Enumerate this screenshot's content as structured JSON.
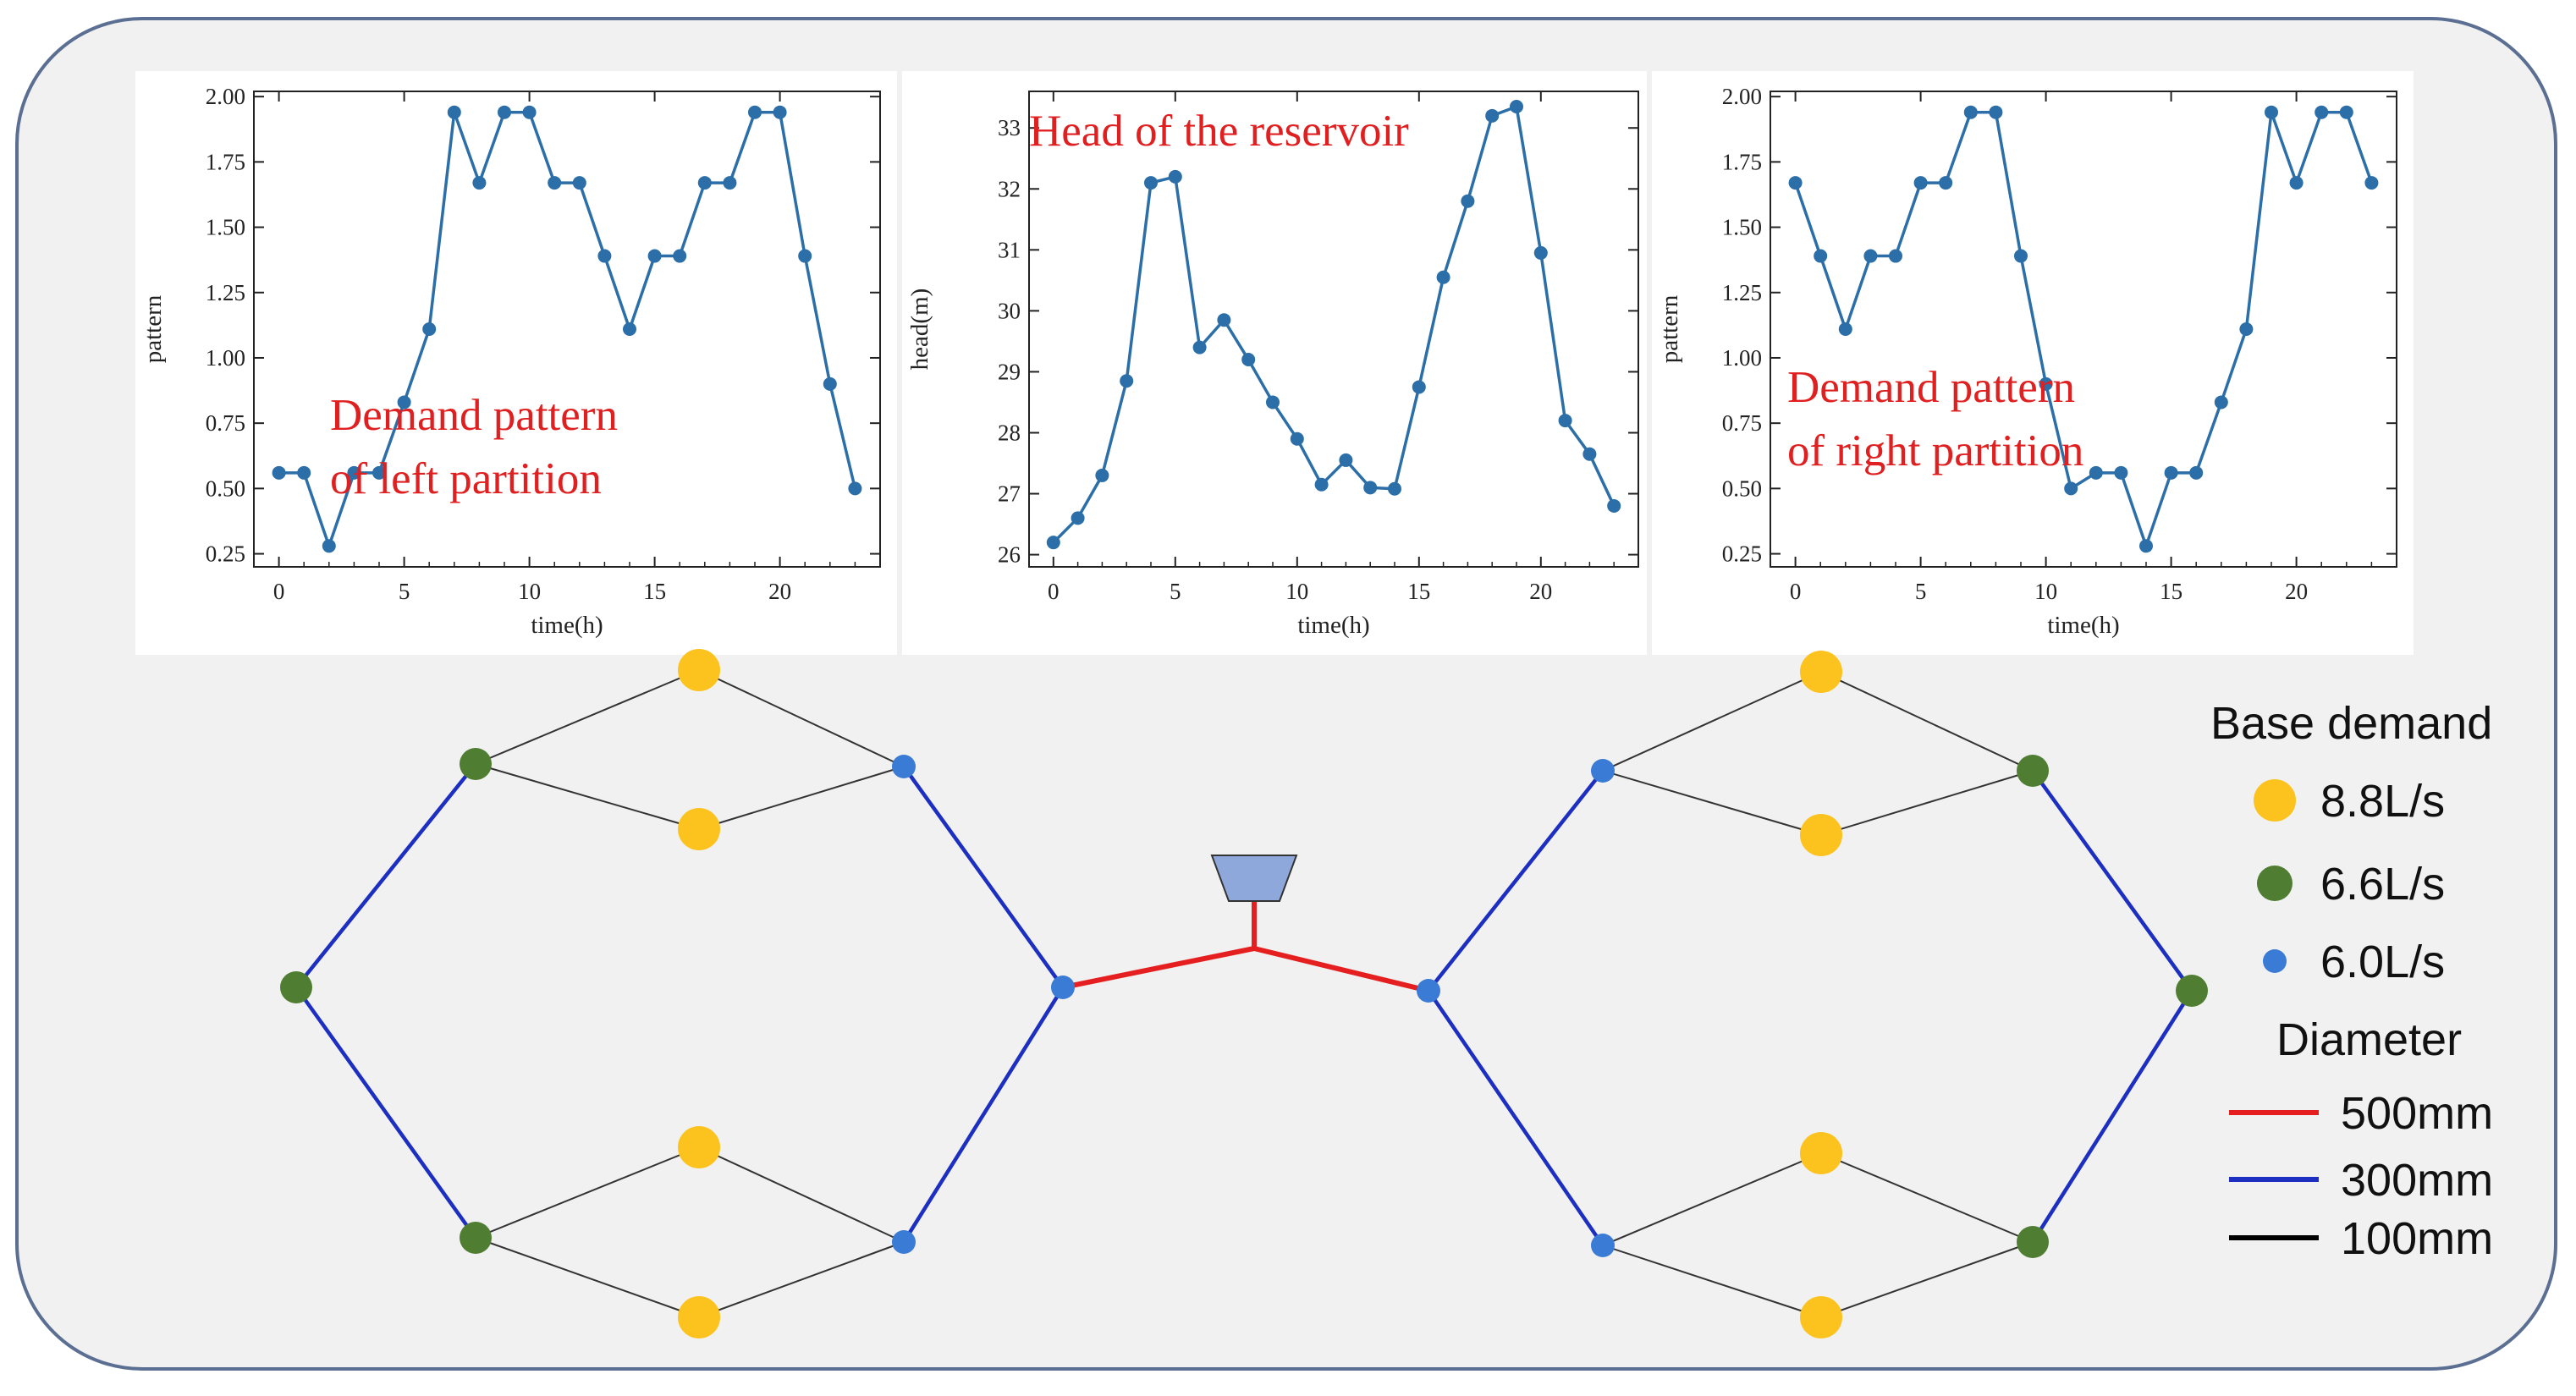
{
  "chart_data": [
    {
      "type": "line",
      "annotation": [
        "Demand pattern",
        "of left partition"
      ],
      "xlabel": "time(h)",
      "ylabel": "pattern",
      "xlim": [
        -1,
        24
      ],
      "ylim": [
        0.2,
        2.02
      ],
      "xticks": [
        0,
        5,
        10,
        15,
        20
      ],
      "yticks": [
        "0.25",
        "0.50",
        "0.75",
        "1.00",
        "1.25",
        "1.50",
        "1.75",
        "2.00"
      ],
      "x": [
        0,
        1,
        2,
        3,
        4,
        5,
        6,
        7,
        8,
        9,
        10,
        11,
        12,
        13,
        14,
        15,
        16,
        17,
        18,
        19,
        20,
        21,
        22,
        23
      ],
      "y": [
        0.56,
        0.56,
        0.28,
        0.56,
        0.56,
        0.83,
        1.11,
        1.94,
        1.67,
        1.94,
        1.94,
        1.67,
        1.67,
        1.39,
        1.11,
        1.39,
        1.39,
        1.67,
        1.67,
        1.94,
        1.94,
        1.39,
        0.9,
        0.5
      ],
      "color": "#2b6ea8"
    },
    {
      "type": "line",
      "annotation": [
        "Head of the reservoir"
      ],
      "xlabel": "time(h)",
      "ylabel": "head(m)",
      "xlim": [
        -1,
        24
      ],
      "ylim": [
        25.8,
        33.6
      ],
      "xticks": [
        0,
        5,
        10,
        15,
        20
      ],
      "yticks": [
        "26",
        "27",
        "28",
        "29",
        "30",
        "31",
        "32",
        "33"
      ],
      "x": [
        0,
        1,
        2,
        3,
        4,
        5,
        6,
        7,
        8,
        9,
        10,
        11,
        12,
        13,
        14,
        15,
        16,
        17,
        18,
        19,
        20,
        21,
        22,
        23
      ],
      "y": [
        26.2,
        26.6,
        27.3,
        28.85,
        32.1,
        32.2,
        29.4,
        29.85,
        29.2,
        28.5,
        27.9,
        27.15,
        27.55,
        27.1,
        27.08,
        28.75,
        30.55,
        31.8,
        33.2,
        33.35,
        30.95,
        28.2,
        27.65,
        26.8
      ],
      "color": "#2b6ea8"
    },
    {
      "type": "line",
      "annotation": [
        "Demand pattern",
        "of right partition"
      ],
      "xlabel": "time(h)",
      "ylabel": "pattern",
      "xlim": [
        -1,
        24
      ],
      "ylim": [
        0.2,
        2.02
      ],
      "xticks": [
        0,
        5,
        10,
        15,
        20
      ],
      "yticks": [
        "0.25",
        "0.50",
        "0.75",
        "1.00",
        "1.25",
        "1.50",
        "1.75",
        "2.00"
      ],
      "x": [
        0,
        1,
        2,
        3,
        4,
        5,
        6,
        7,
        8,
        9,
        10,
        11,
        12,
        13,
        14,
        15,
        16,
        17,
        18,
        19,
        20,
        21,
        22,
        23
      ],
      "y": [
        1.67,
        1.39,
        1.11,
        1.39,
        1.39,
        1.67,
        1.67,
        1.94,
        1.94,
        1.39,
        0.9,
        0.5,
        0.56,
        0.56,
        0.28,
        0.56,
        0.56,
        0.83,
        1.11,
        1.94,
        1.67,
        1.94,
        1.94,
        1.67
      ],
      "color": "#2b6ea8"
    }
  ],
  "network": {
    "colors": {
      "d500": "#e51f1f",
      "d300": "#1c2fc0",
      "d100": "#333333",
      "node_large": "#fcc21d",
      "node_medium": "#4f7d32",
      "node_small": "#3a7bd5",
      "reservoir": "#8fa8dc"
    }
  },
  "legend": {
    "base_demand_title": "Base demand",
    "demand_items": [
      {
        "label": "8.8L/s",
        "kind": "large"
      },
      {
        "label": "6.6L/s",
        "kind": "medium"
      },
      {
        "label": "6.0L/s",
        "kind": "small"
      }
    ],
    "diameter_title": "Diameter",
    "diameter_items": [
      {
        "label": "500mm",
        "kind": "d500"
      },
      {
        "label": "300mm",
        "kind": "d300"
      },
      {
        "label": "100mm",
        "kind": "d100"
      }
    ]
  }
}
